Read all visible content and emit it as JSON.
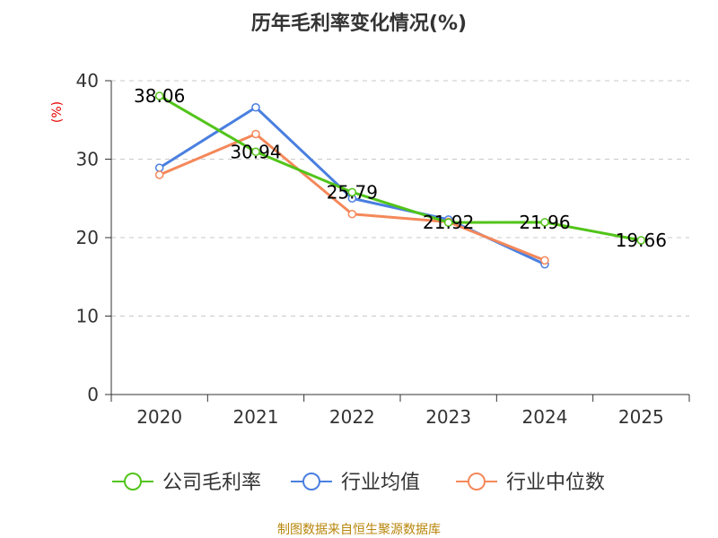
{
  "chart_data": {
    "type": "line",
    "title": "历年毛利率变化情况(%)",
    "ylabel": "(%)",
    "xlabel": "",
    "categories": [
      "2020",
      "2021",
      "2022",
      "2023",
      "2024",
      "2025"
    ],
    "ylim": [
      0,
      40
    ],
    "yticks": [
      0,
      10,
      20,
      30,
      40
    ],
    "grid": true,
    "legend_position": "bottom",
    "series": [
      {
        "name": "公司毛利率",
        "color": "#52c41a",
        "values": [
          38.06,
          30.94,
          25.79,
          21.92,
          21.96,
          19.66
        ],
        "labels": [
          "38.06",
          "30.94",
          "25.79",
          "21.92",
          "21.96",
          "19.66"
        ]
      },
      {
        "name": "行业均值",
        "color": "#4a7fe0",
        "values": [
          28.9,
          36.6,
          25.0,
          22.3,
          16.6,
          null
        ]
      },
      {
        "name": "行业中位数",
        "color": "#f4885a",
        "values": [
          28.0,
          33.2,
          23.0,
          22.0,
          17.1,
          null
        ]
      }
    ],
    "source": "制图数据来自恒生聚源数据库"
  }
}
